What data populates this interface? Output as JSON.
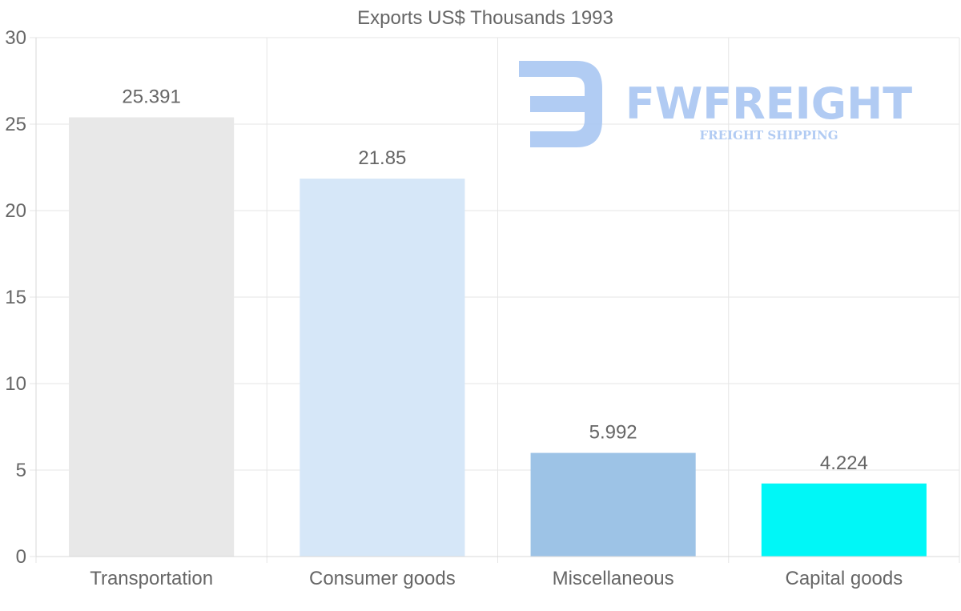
{
  "chart_data": {
    "type": "bar",
    "title": "Exports US$ Thousands 1993",
    "categories": [
      "Transportation",
      "Consumer goods",
      "Miscellaneous",
      "Capital goods"
    ],
    "values": [
      25.391,
      21.85,
      5.992,
      4.224
    ],
    "value_labels": [
      "25.391",
      "21.85",
      "5.992",
      "4.224"
    ],
    "colors": [
      "#e8e8e8",
      "#d6e7f8",
      "#9dc3e6",
      "#00f7f7"
    ],
    "ylim": [
      0,
      30
    ],
    "yticks": [
      0,
      5,
      10,
      15,
      20,
      25,
      30
    ],
    "xlabel": "",
    "ylabel": "",
    "grid": true
  },
  "watermark": {
    "brand": "FWFREIGHT",
    "tagline": "FREIGHT SHIPPING",
    "color": "#a9c6f2"
  }
}
